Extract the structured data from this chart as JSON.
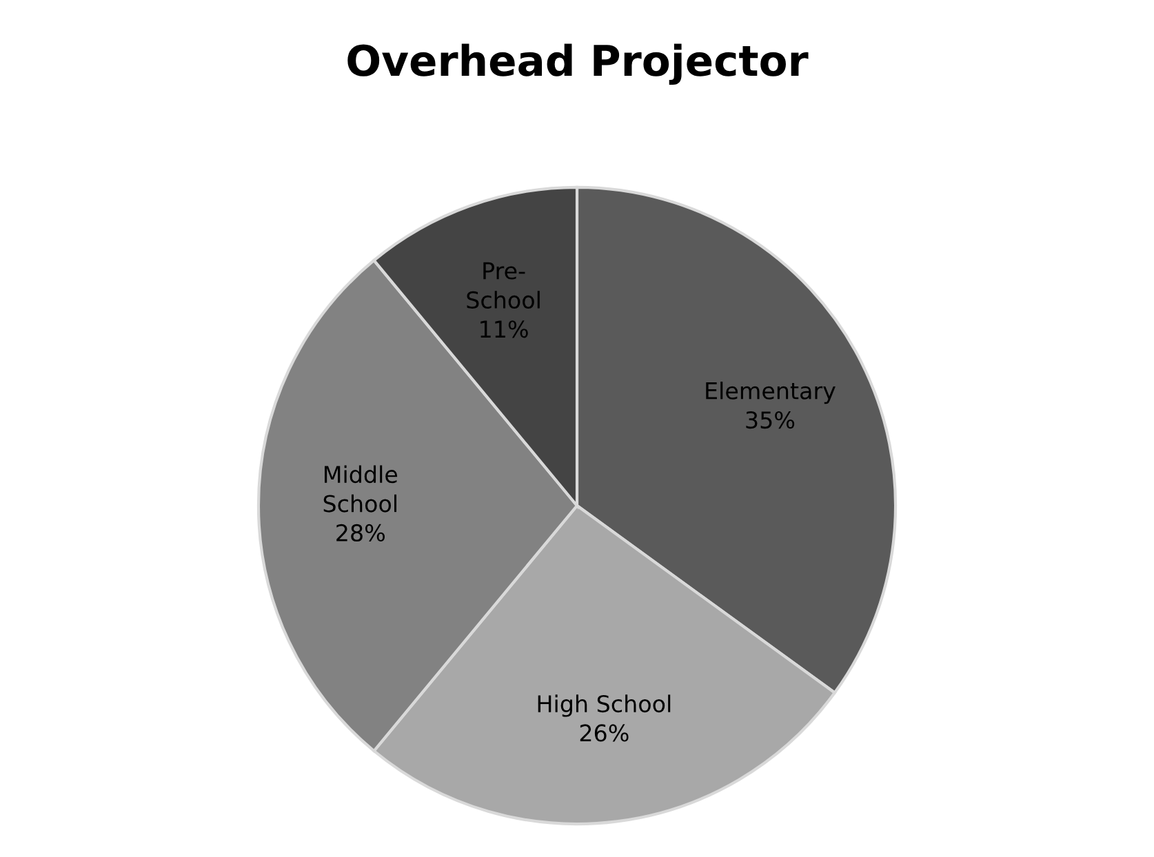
{
  "chart_data": {
    "type": "pie",
    "title": "Overhead Projector",
    "categories": [
      "Elementary",
      "High School",
      "Middle\nSchool",
      "Pre-\nSchool"
    ],
    "values": [
      35,
      26,
      28,
      11
    ],
    "value_labels": [
      "35%",
      "26%",
      "28%",
      "11%"
    ],
    "colors": [
      "#5a5a5a",
      "#a8a8a8",
      "#828282",
      "#444444"
    ],
    "legend": false
  }
}
